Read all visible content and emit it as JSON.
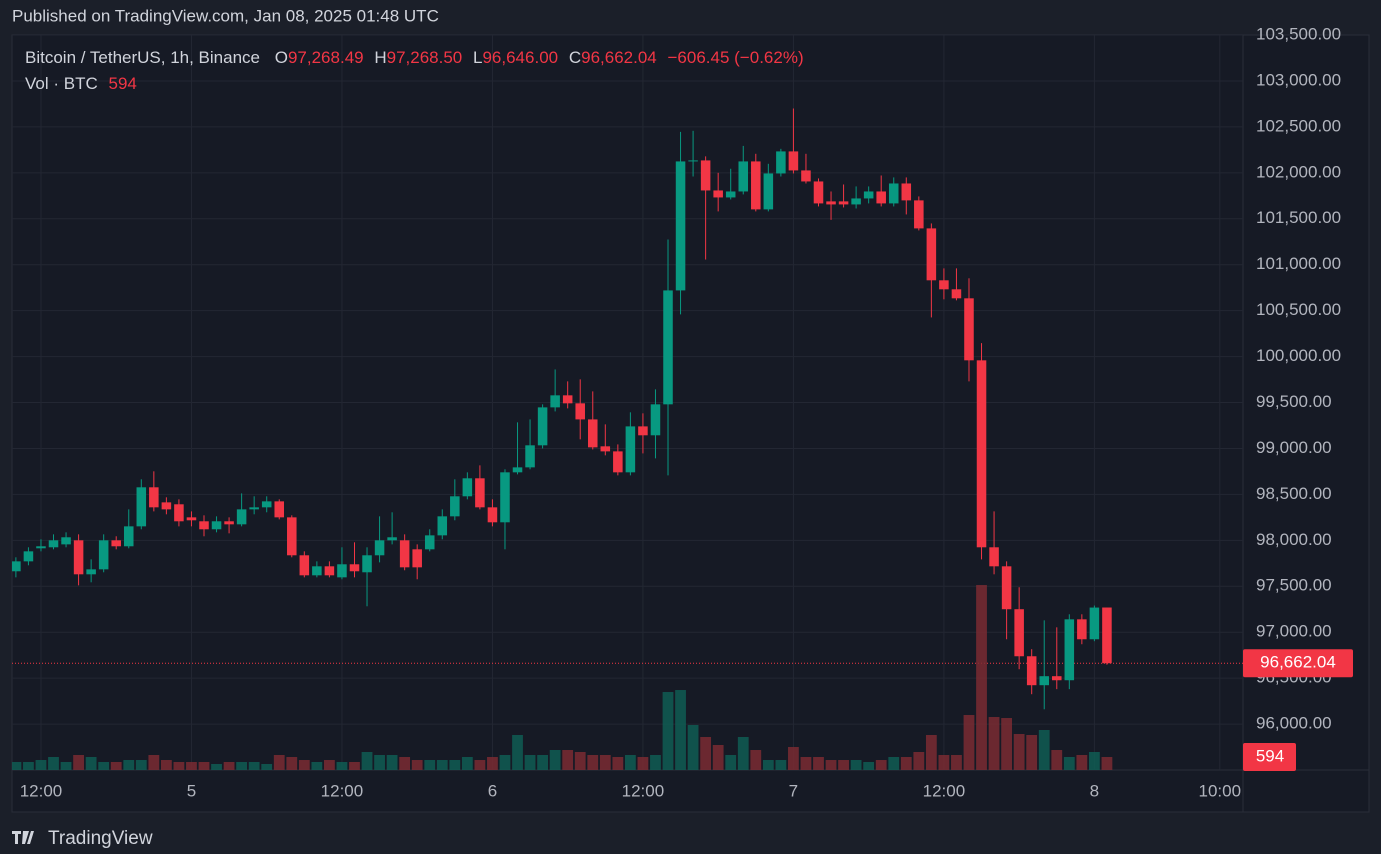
{
  "header": {
    "published": "Published on TradingView.com, Jan 08, 2025 01:48 UTC"
  },
  "footer": {
    "brand": "TradingView"
  },
  "chart_data": {
    "type": "candlestick",
    "symbol": "Bitcoin / TetherUS, 1h, Binance",
    "legend": {
      "open_label": "O",
      "open": "97,268.49",
      "high_label": "H",
      "high": "97,268.50",
      "low_label": "L",
      "low": "96,646.00",
      "close_label": "C",
      "close": "96,662.04",
      "change": "−606.45 (−0.62%)"
    },
    "volume_label": "Vol · BTC",
    "volume_last": "594",
    "last_price_label": "96,662.04",
    "up_color": "#089981",
    "down_color": "#f23645",
    "open": [
      97663,
      97771,
      97913,
      97924,
      97956,
      98000,
      97630,
      97684,
      98000,
      97935,
      98152,
      98577,
      98413,
      98392,
      98250,
      98207,
      98120,
      98207,
      98174,
      98337,
      98359,
      98424,
      98250,
      97837,
      97619,
      97717,
      97597,
      97739,
      97652,
      97837,
      98000,
      98000,
      97902,
      97902,
      98054,
      98261,
      98479,
      98675,
      98359,
      98196,
      98740,
      98794,
      99034,
      99447,
      99578,
      99491,
      99316,
      99023,
      98968,
      98740,
      99240,
      99143,
      99480,
      100720,
      102124,
      102135,
      101808,
      101732,
      101797,
      102124,
      101602,
      101993,
      102233,
      102026,
      101906,
      101689,
      101689,
      101656,
      101721,
      101797,
      101667,
      101884,
      101700,
      101395,
      100830,
      100732,
      100634,
      99959,
      97924,
      97717,
      97250,
      96738,
      96423,
      96521,
      96477,
      97140,
      96923,
      97268.49
    ],
    "high": [
      97815,
      97924,
      98011,
      98065,
      98087,
      98065,
      97793,
      98065,
      98044,
      98337,
      98664,
      98751,
      98468,
      98446,
      98315,
      98272,
      98261,
      98250,
      98511,
      98479,
      98479,
      98446,
      98272,
      97880,
      97771,
      97771,
      97924,
      97978,
      97924,
      98261,
      98305,
      98065,
      97956,
      98120,
      98337,
      98664,
      98740,
      98816,
      98446,
      98773,
      99284,
      99316,
      99480,
      99860,
      99730,
      99752,
      99621,
      99262,
      99044,
      99393,
      99382,
      99643,
      101274,
      102446,
      102457,
      102179,
      102000,
      102044,
      102293,
      102207,
      102098,
      102261,
      102700,
      102207,
      101939,
      101797,
      101873,
      101852,
      101852,
      101971,
      101950,
      101950,
      101743,
      101449,
      100960,
      100960,
      100852,
      100146,
      98315,
      97771,
      97489,
      96815,
      97129,
      97053,
      97195,
      97195,
      97290,
      97268.5
    ],
    "low": [
      97597,
      97728,
      97880,
      97902,
      97924,
      97510,
      97543,
      97652,
      97902,
      97913,
      98120,
      98315,
      98283,
      98152,
      98152,
      98044,
      98087,
      98076,
      98152,
      98283,
      98305,
      98228,
      97815,
      97597,
      97597,
      97597,
      97576,
      97597,
      97282,
      97760,
      97956,
      97674,
      97576,
      97880,
      98011,
      98218,
      98446,
      98337,
      98152,
      97902,
      98718,
      98773,
      99000,
      99403,
      99436,
      99099,
      98989,
      98925,
      98707,
      98707,
      98946,
      98892,
      98707,
      100459,
      101960,
      101056,
      101580,
      101710,
      101765,
      101580,
      101580,
      101960,
      101993,
      101884,
      101634,
      101488,
      101623,
      101612,
      101667,
      101634,
      101634,
      101547,
      101373,
      100426,
      100623,
      100612,
      99730,
      97793,
      97630,
      96923,
      96597,
      96325,
      96161,
      96380,
      96380,
      96869,
      96902,
      96646.0
    ],
    "close": [
      97771,
      97880,
      97935,
      98000,
      98033,
      97630,
      97684,
      98000,
      97935,
      98152,
      98577,
      98359,
      98337,
      98207,
      98218,
      98120,
      98207,
      98174,
      98337,
      98359,
      98424,
      98250,
      97837,
      97619,
      97717,
      97619,
      97739,
      97663,
      97837,
      98000,
      98033,
      97706,
      97706,
      98054,
      98261,
      98479,
      98675,
      98359,
      98196,
      98740,
      98794,
      99034,
      99447,
      99578,
      99491,
      99316,
      99012,
      98968,
      98740,
      99240,
      99143,
      99480,
      100720,
      102124,
      102135,
      101808,
      101732,
      101797,
      102124,
      101602,
      101993,
      102233,
      102026,
      101906,
      101667,
      101656,
      101656,
      101721,
      101797,
      101667,
      101884,
      101700,
      101395,
      100830,
      100732,
      100634,
      99959,
      97924,
      97717,
      97250,
      96738,
      96423,
      96521,
      96477,
      97140,
      96923,
      97268,
      96662.04
    ],
    "volume": [
      366,
      366,
      457,
      594,
      366,
      686,
      594,
      366,
      366,
      457,
      457,
      686,
      457,
      366,
      366,
      366,
      274,
      366,
      366,
      366,
      274,
      686,
      594,
      457,
      366,
      457,
      366,
      366,
      823,
      686,
      686,
      594,
      457,
      457,
      457,
      457,
      594,
      457,
      594,
      686,
      1600,
      686,
      686,
      914,
      914,
      823,
      686,
      686,
      594,
      686,
      594,
      686,
      3565,
      3656,
      2057,
      1508,
      1143,
      686,
      1508,
      914,
      457,
      457,
      1051,
      594,
      594,
      457,
      457,
      457,
      366,
      457,
      594,
      594,
      823,
      1600,
      686,
      686,
      2514,
      8455,
      2422,
      2376,
      1645,
      1600,
      1828,
      914,
      594,
      686,
      823,
      594
    ],
    "ylim": [
      95500,
      103500
    ],
    "yticks": [
      {
        "value": 96000,
        "label": "96,000.00"
      },
      {
        "value": 96500,
        "label": "96,500.00"
      },
      {
        "value": 97000,
        "label": "97,000.00"
      },
      {
        "value": 97500,
        "label": "97,500.00"
      },
      {
        "value": 98000,
        "label": "98,000.00"
      },
      {
        "value": 98500,
        "label": "98,500.00"
      },
      {
        "value": 99000,
        "label": "99,000.00"
      },
      {
        "value": 99500,
        "label": "99,500.00"
      },
      {
        "value": 100000,
        "label": "100,000.00"
      },
      {
        "value": 100500,
        "label": "100,500.00"
      },
      {
        "value": 101000,
        "label": "101,000.00"
      },
      {
        "value": 101500,
        "label": "101,500.00"
      },
      {
        "value": 102000,
        "label": "102,000.00"
      },
      {
        "value": 102500,
        "label": "102,500.00"
      },
      {
        "value": 103000,
        "label": "103,000.00"
      },
      {
        "value": 103500,
        "label": "103,500.00"
      }
    ],
    "volume_ylim": [
      0,
      33600
    ],
    "xlim": [
      -0.31,
      97.85
    ],
    "xticks": [
      {
        "value": 2,
        "label": "12:00"
      },
      {
        "value": 14,
        "label": "5"
      },
      {
        "value": 26,
        "label": "12:00"
      },
      {
        "value": 38,
        "label": "6"
      },
      {
        "value": 50,
        "label": "12:00"
      },
      {
        "value": 62,
        "label": "7"
      },
      {
        "value": 74,
        "label": "12:00"
      },
      {
        "value": 86,
        "label": "8"
      },
      {
        "value": 96,
        "label": "10:00"
      }
    ],
    "grid": true
  }
}
